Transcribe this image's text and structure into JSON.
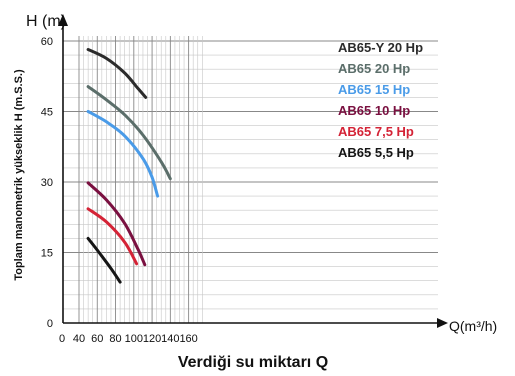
{
  "chart_data": {
    "type": "line",
    "title": "",
    "ylabel_short": "H (m)",
    "ylabel_long": "Toplam manometrik yükseklik H (m.S.S.)",
    "xlabel_short": "Q(m³/h)",
    "xlabel_long": "Verdiği su miktarı Q",
    "x_tick_labels": [
      "0",
      "40",
      "60",
      "80",
      "100",
      "120",
      "140",
      "160"
    ],
    "y_tick_labels": [
      "0",
      "15",
      "30",
      "45",
      "60"
    ],
    "xlim": [
      40,
      180
    ],
    "ylim": [
      0,
      60
    ],
    "grid": true,
    "legend_position": "top-right",
    "series": [
      {
        "name": "AB65-Y 20 Hp",
        "color": "#2b2b2b",
        "x": [
          50,
          70,
          90,
          105,
          113
        ],
        "y": [
          58.2,
          56.3,
          53.2,
          49.8,
          48.0
        ]
      },
      {
        "name": "AB65 20 Hp",
        "color": "#5b6e6a",
        "x": [
          50,
          70,
          90,
          110,
          130,
          140
        ],
        "y": [
          50.3,
          47.5,
          44.3,
          40.0,
          34.3,
          30.7
        ]
      },
      {
        "name": "AB65 15 Hp",
        "color": "#4a9be8",
        "x": [
          50,
          70,
          90,
          110,
          120,
          126
        ],
        "y": [
          45.0,
          42.8,
          39.8,
          35.0,
          31.0,
          27.0
        ]
      },
      {
        "name": "AB65 10 Hp",
        "color": "#7a1040",
        "x": [
          50,
          70,
          90,
          105,
          112
        ],
        "y": [
          29.8,
          26.2,
          21.2,
          15.5,
          12.4
        ]
      },
      {
        "name": "AB65 7,5 Hp",
        "color": "#d42336",
        "x": [
          50,
          70,
          90,
          103
        ],
        "y": [
          24.3,
          21.5,
          17.2,
          12.6
        ]
      },
      {
        "name": "AB65 5,5 Hp",
        "color": "#151515",
        "x": [
          50,
          60,
          75,
          85
        ],
        "y": [
          18.0,
          15.5,
          11.6,
          8.7
        ]
      }
    ]
  }
}
